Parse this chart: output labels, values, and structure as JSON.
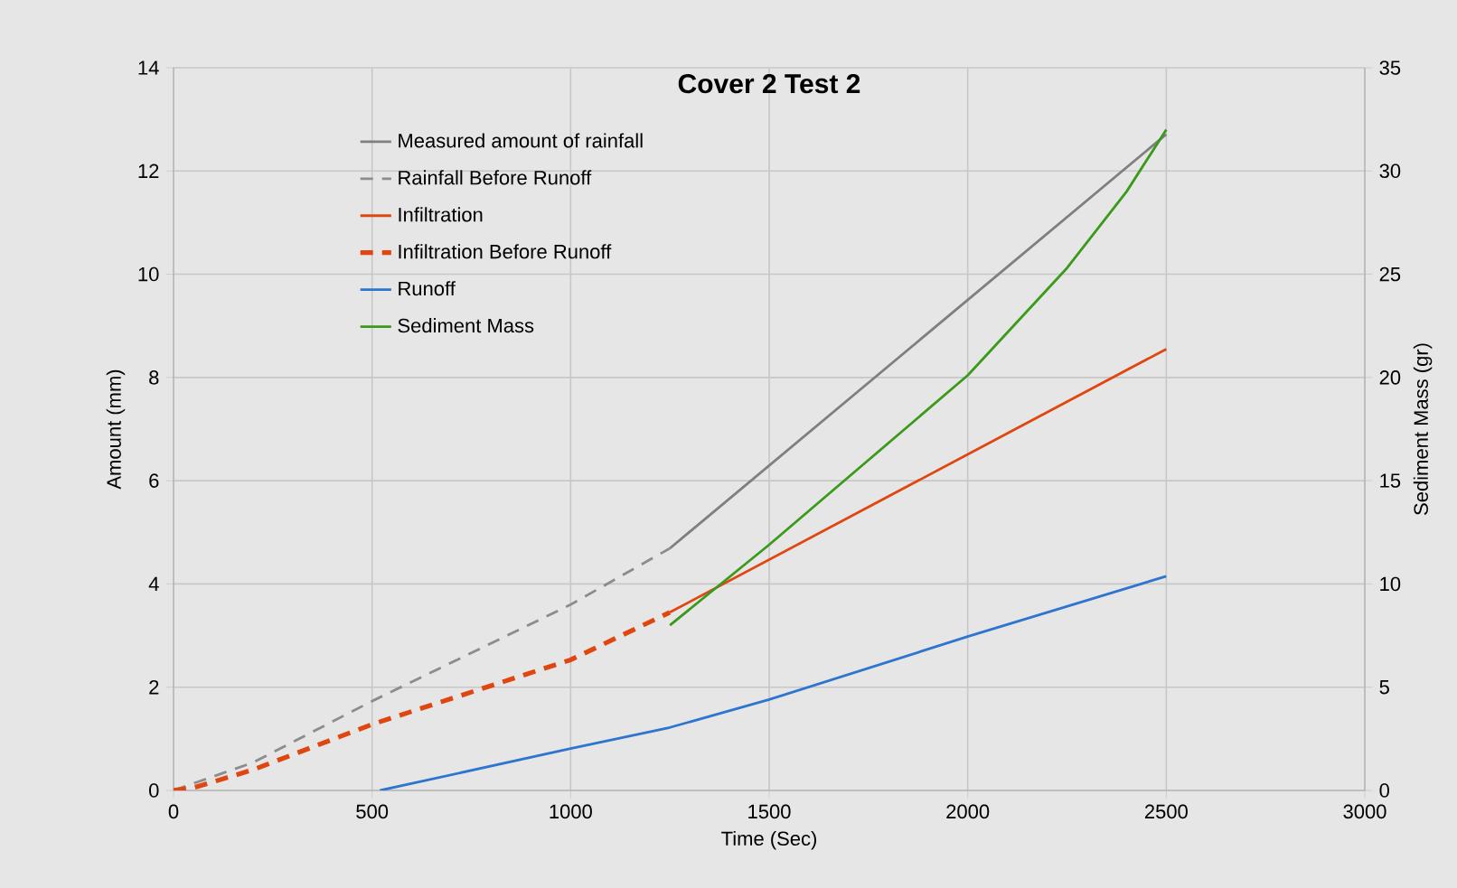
{
  "chart_data": {
    "type": "line",
    "title": "Cover 2 Test 2",
    "xlabel": "Time (Sec)",
    "ylabel": "Amount (mm)",
    "y2label": "Sediment Mass (gr)",
    "xlim": [
      0,
      3000
    ],
    "xticks": [
      0,
      500,
      1000,
      1500,
      2000,
      2500,
      3000
    ],
    "ylim": [
      0,
      14
    ],
    "yticks": [
      0,
      2,
      4,
      6,
      8,
      10,
      12,
      14
    ],
    "y2lim": [
      0,
      35
    ],
    "y2ticks": [
      0,
      5,
      10,
      15,
      20,
      25,
      30,
      35
    ],
    "grid": true,
    "legend": "top left",
    "series": [
      {
        "name": "Measured amount of rainfall",
        "color": "#7f7f7f",
        "line_style": "solid",
        "x": [
          1250,
          2500
        ],
        "values": [
          4.69,
          12.71
        ]
      },
      {
        "name": "Rainfall Before Runoff",
        "color": "#8c8c8c",
        "line_style": "dashed",
        "x": [
          0,
          200,
          500,
          1000,
          1250
        ],
        "values": [
          0,
          0.54,
          1.73,
          3.6,
          4.69
        ]
      },
      {
        "name": "Infiltration",
        "color": "#e0460f",
        "line_style": "solid",
        "x": [
          1250,
          2500
        ],
        "values": [
          3.45,
          8.55
        ]
      },
      {
        "name": "Infiltration Before Runoff",
        "color": "#e0460f",
        "line_style": "dashed",
        "x": [
          0,
          50,
          200,
          500,
          1000,
          1250
        ],
        "values": [
          0,
          0.05,
          0.4,
          1.28,
          2.53,
          3.45
        ]
      },
      {
        "name": "Runoff",
        "color": "#2e75d0",
        "line_style": "solid",
        "x": [
          520,
          1000,
          1250,
          1500,
          2000,
          2500
        ],
        "values": [
          0,
          0.81,
          1.22,
          1.76,
          2.98,
          4.15
        ]
      },
      {
        "name": "Sediment Mass",
        "color": "#3a9a1a",
        "line_style": "solid",
        "axis": "y2",
        "x": [
          1250,
          1500,
          1750,
          2000,
          2250,
          2400,
          2500
        ],
        "values": [
          8.0,
          11.9,
          16.0,
          20.1,
          25.3,
          29.0,
          32.0
        ]
      }
    ]
  }
}
